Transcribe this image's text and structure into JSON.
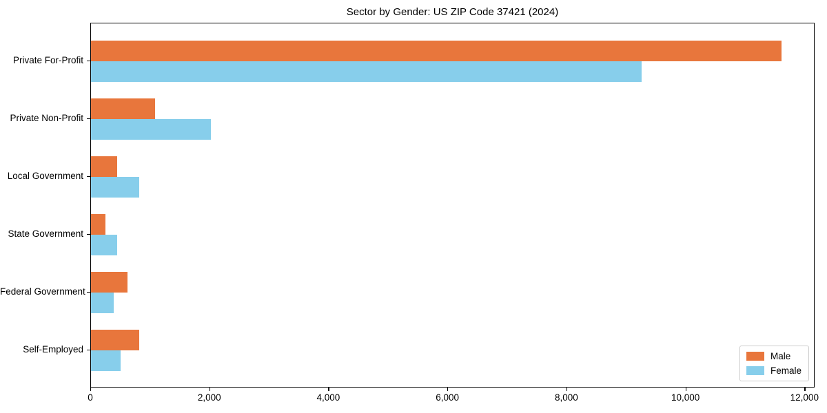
{
  "chart_data": {
    "type": "bar",
    "orientation": "horizontal",
    "title": "Sector by Gender: US ZIP Code 37421 (2024)",
    "categories": [
      "Private For-Profit",
      "Private Non-Profit",
      "Local Government",
      "State Government",
      "Federal Government",
      "Self-Employed"
    ],
    "series": [
      {
        "name": "Male",
        "color": "#e8763c",
        "values": [
          11600,
          1080,
          440,
          245,
          610,
          810
        ]
      },
      {
        "name": "Female",
        "color": "#87ceeb",
        "values": [
          9250,
          2010,
          810,
          440,
          380,
          500
        ]
      }
    ],
    "xlabel": "",
    "ylabel": "",
    "xlim": [
      0,
      12170
    ],
    "x_ticks": [
      0,
      2000,
      4000,
      6000,
      8000,
      10000,
      12000
    ],
    "x_tick_labels": [
      "0",
      "2,000",
      "4,000",
      "6,000",
      "8,000",
      "10,000",
      "12,000"
    ],
    "grid": false,
    "legend": {
      "position": "lower right",
      "labels": [
        "Male",
        "Female"
      ]
    }
  }
}
